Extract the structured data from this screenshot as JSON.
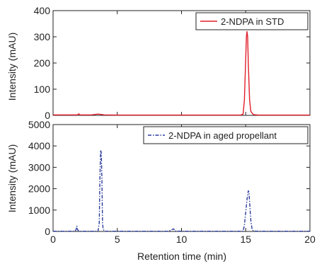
{
  "chart_data": [
    {
      "type": "line",
      "xlabel": "",
      "ylabel": "Intensity (mAU)",
      "xlim": [
        0,
        20
      ],
      "ylim": [
        0,
        400
      ],
      "xticks": [
        0,
        5,
        10,
        15,
        20
      ],
      "yticks": [
        0,
        100,
        200,
        300,
        400
      ],
      "show_xtick_labels": false,
      "grid": false,
      "legend_position": "top-right",
      "series": [
        {
          "name": "2-NDPA in STD",
          "color": "#e11f2a",
          "style": "solid",
          "x": [
            0,
            1.9,
            2.0,
            2.1,
            3.0,
            3.5,
            4.0,
            5.0,
            10.0,
            14.6,
            14.8,
            14.9,
            15.0,
            15.05,
            15.1,
            15.15,
            15.2,
            15.3,
            15.4,
            15.6,
            16.0,
            20.0
          ],
          "y": [
            2,
            2,
            6,
            2,
            2,
            5,
            2,
            1,
            1,
            1,
            5,
            60,
            220,
            300,
            320,
            300,
            200,
            60,
            15,
            3,
            1,
            1
          ]
        }
      ]
    },
    {
      "type": "line",
      "xlabel": "Retention time (min)",
      "ylabel": "Intensity (mAU)",
      "xlim": [
        0,
        20
      ],
      "ylim": [
        0,
        5000
      ],
      "xticks": [
        0,
        5,
        10,
        15,
        20
      ],
      "yticks": [
        0,
        1000,
        2000,
        3000,
        4000,
        5000
      ],
      "show_xtick_labels": true,
      "grid": false,
      "legend_position": "top-right",
      "series": [
        {
          "name": "2-NDPA in aged propellant",
          "color": "#2b3b9c",
          "style": "dash-dot",
          "x": [
            0,
            1.7,
            1.8,
            1.85,
            1.9,
            2.0,
            3.5,
            3.6,
            3.65,
            3.7,
            3.75,
            3.8,
            3.85,
            3.9,
            4.0,
            4.1,
            5.0,
            9.0,
            9.3,
            9.4,
            9.5,
            10.0,
            14.8,
            14.9,
            15.0,
            15.1,
            15.2,
            15.25,
            15.3,
            15.4,
            15.5,
            15.6,
            16.0,
            20.0
          ],
          "y": [
            10,
            10,
            100,
            250,
            100,
            10,
            10,
            400,
            2500,
            3800,
            3700,
            2500,
            400,
            100,
            20,
            10,
            10,
            10,
            100,
            120,
            20,
            10,
            10,
            300,
            900,
            1500,
            1900,
            1850,
            1400,
            500,
            100,
            20,
            10,
            10
          ]
        }
      ]
    }
  ]
}
